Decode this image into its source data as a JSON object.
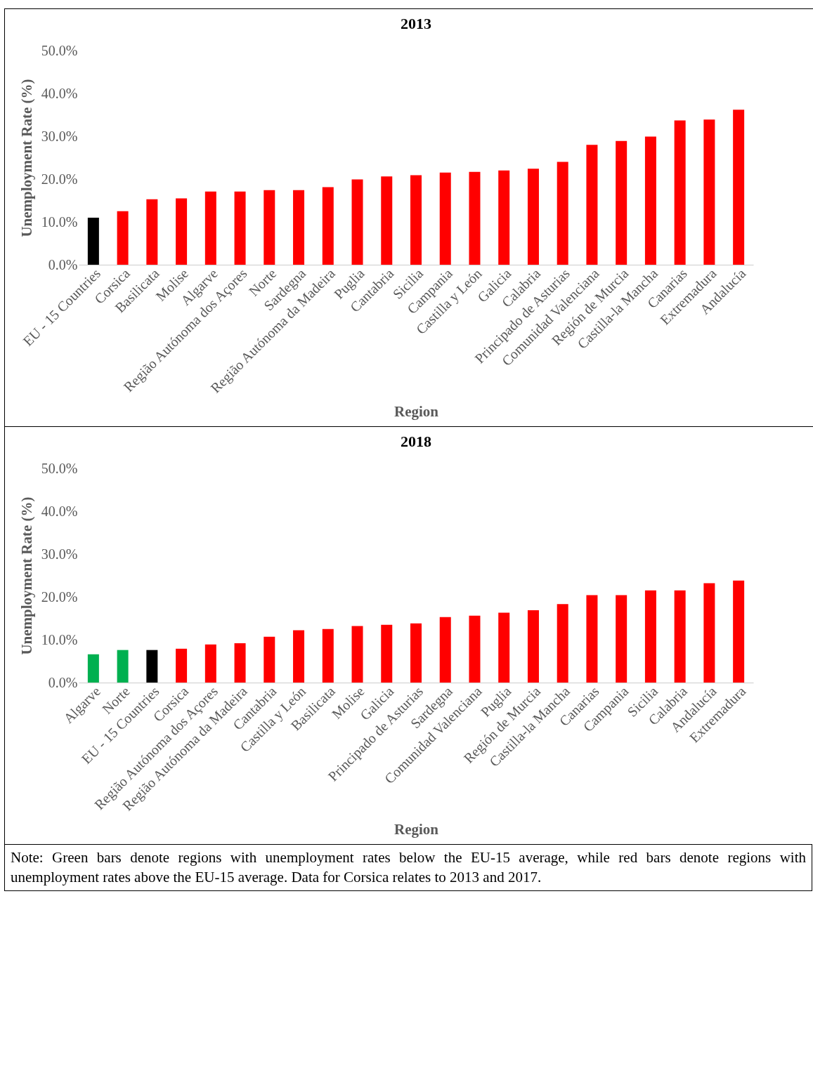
{
  "chart_data": [
    {
      "type": "bar",
      "title": "2013",
      "xlabel": "Region",
      "ylabel": "Unemployment  Rate  (%)",
      "categories": [
        "EU - 15 Countries",
        "Corsica",
        "Basilicata",
        "Molise",
        "Algarve",
        "Região Autónoma dos Açores",
        "Norte",
        "Sardegna",
        "Região Autónoma da Madeira",
        "Puglia",
        "Cantabria",
        "Sicilia",
        "Campania",
        "Castilla y León",
        "Galicia",
        "Calabria",
        "Principado de Asturias",
        "Comunidad Valenciana",
        "Región de Murcia",
        "Castilla-la Mancha",
        "Canarias",
        "Extremadura",
        "Andalucía"
      ],
      "values": [
        11.0,
        12.5,
        15.3,
        15.5,
        17.1,
        17.1,
        17.4,
        17.4,
        18.1,
        19.9,
        20.6,
        20.9,
        21.5,
        21.7,
        22.0,
        22.4,
        24.0,
        28.0,
        28.9,
        29.9,
        33.7,
        33.9,
        36.2
      ],
      "colors": [
        "#000000",
        "#ff0000",
        "#ff0000",
        "#ff0000",
        "#ff0000",
        "#ff0000",
        "#ff0000",
        "#ff0000",
        "#ff0000",
        "#ff0000",
        "#ff0000",
        "#ff0000",
        "#ff0000",
        "#ff0000",
        "#ff0000",
        "#ff0000",
        "#ff0000",
        "#ff0000",
        "#ff0000",
        "#ff0000",
        "#ff0000",
        "#ff0000",
        "#ff0000"
      ],
      "ylim": [
        0,
        50
      ],
      "yticks": [
        {
          "value": 0,
          "label": "0.0%"
        },
        {
          "value": 10,
          "label": "10.0%"
        },
        {
          "value": 20,
          "label": "20.0%"
        },
        {
          "value": 30,
          "label": "30.0%"
        },
        {
          "value": 40,
          "label": "40.0%"
        },
        {
          "value": 50,
          "label": "50.0%"
        }
      ]
    },
    {
      "type": "bar",
      "title": "2018",
      "xlabel": "Region",
      "ylabel": "Unemployment  Rate  (%)",
      "categories": [
        "Algarve",
        "Norte",
        "EU - 15 Countries",
        "Corsica",
        "Região Autónoma dos Açores",
        "Região Autónoma da Madeira",
        "Cantabria",
        "Castilla y León",
        "Basilicata",
        "Molise",
        "Galicia",
        "Principado de Asturias",
        "Sardegna",
        "Comunidad Valenciana",
        "Puglia",
        "Región de Murcia",
        "Castilla-la Mancha",
        "Canarias",
        "Campania",
        "Sicilia",
        "Calabria",
        "Andalucía",
        "Extremadura"
      ],
      "values": [
        6.6,
        7.6,
        7.6,
        7.9,
        8.9,
        9.2,
        10.7,
        12.2,
        12.5,
        13.2,
        13.5,
        13.8,
        15.3,
        15.6,
        16.3,
        16.9,
        18.3,
        20.4,
        20.4,
        21.5,
        21.5,
        23.2,
        23.8
      ],
      "colors": [
        "#00b050",
        "#00b050",
        "#000000",
        "#ff0000",
        "#ff0000",
        "#ff0000",
        "#ff0000",
        "#ff0000",
        "#ff0000",
        "#ff0000",
        "#ff0000",
        "#ff0000",
        "#ff0000",
        "#ff0000",
        "#ff0000",
        "#ff0000",
        "#ff0000",
        "#ff0000",
        "#ff0000",
        "#ff0000",
        "#ff0000",
        "#ff0000",
        "#ff0000"
      ],
      "ylim": [
        0,
        50
      ],
      "yticks": [
        {
          "value": 0,
          "label": "0.0%"
        },
        {
          "value": 10,
          "label": "10.0%"
        },
        {
          "value": 20,
          "label": "20.0%"
        },
        {
          "value": 30,
          "label": "30.0%"
        },
        {
          "value": 40,
          "label": "40.0%"
        },
        {
          "value": 50,
          "label": "50.0%"
        }
      ],
      "annotations": [
        "Note: Green bars denote regions with unemployment rates below the EU-15 average, while red bars denote regions with unemployment rates above the EU-15 average. Data for Corsica relates to 2013 and 2017."
      ]
    }
  ]
}
